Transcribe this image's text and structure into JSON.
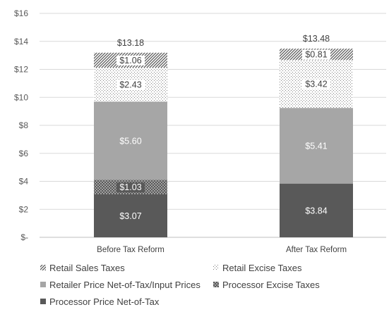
{
  "chart_data": {
    "type": "bar",
    "stacked": true,
    "categories": [
      "Before Tax Reform",
      "After Tax Reform"
    ],
    "series": [
      {
        "name": "Processor Price Net-of-Tax",
        "values": [
          3.07,
          3.84
        ],
        "labels": [
          "$3.07",
          "$3.84"
        ],
        "color": "#595959",
        "pattern": "solid"
      },
      {
        "name": "Processor Excise Taxes",
        "values": [
          1.03,
          0
        ],
        "labels": [
          "$1.03",
          ""
        ],
        "color": "#595959",
        "pattern": "checker"
      },
      {
        "name": "Retailer Price Net-of-Tax/Input Prices",
        "values": [
          5.6,
          5.41
        ],
        "labels": [
          "$5.60",
          "$5.41"
        ],
        "color": "#a6a6a6",
        "pattern": "solid"
      },
      {
        "name": "Retail Excise Taxes",
        "values": [
          2.43,
          3.42
        ],
        "labels": [
          "$2.43",
          "$3.42"
        ],
        "color": "#7f7f7f",
        "pattern": "dots"
      },
      {
        "name": "Retail Sales Taxes",
        "values": [
          1.06,
          0.81
        ],
        "labels": [
          "$1.06",
          "$0.81"
        ],
        "color": "#595959",
        "pattern": "diagonal"
      }
    ],
    "totals": [
      "$13.18",
      "$13.48"
    ],
    "yaxis": {
      "min": 0,
      "max": 16,
      "step": 2,
      "tick_labels": [
        "$-",
        "$2",
        "$4",
        "$6",
        "$8",
        "$10",
        "$12",
        "$14",
        "$16"
      ]
    },
    "grid": true,
    "legend_position": "bottom",
    "legend_order": [
      "Retail Sales Taxes",
      "Retail Excise Taxes",
      "Retailer Price Net-of-Tax/Input Prices",
      "Processor Excise Taxes",
      "Processor Price Net-of-Tax"
    ]
  }
}
